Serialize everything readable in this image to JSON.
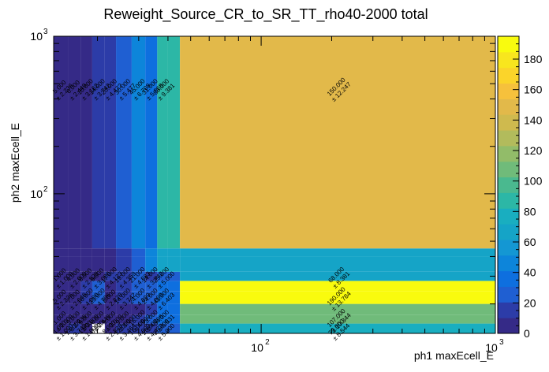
{
  "chart_data": {
    "type": "heatmap",
    "title": "Reweight_Source_CR_to_SR_TT_rho40-2000 total",
    "xlabel": "ph1 maxEcell_E",
    "ylabel": "ph2 maxEcell_E",
    "xscale": "log",
    "yscale": "log",
    "xlim": [
      13,
      1000
    ],
    "ylim": [
      13,
      1000
    ],
    "x_ticks": [
      {
        "base": "10",
        "exp": "2",
        "value": 100
      },
      {
        "base": "10",
        "exp": "3",
        "value": 1000
      }
    ],
    "y_ticks": [
      {
        "base": "10",
        "exp": "2",
        "value": 100
      },
      {
        "base": "10",
        "exp": "3",
        "value": 1000
      }
    ],
    "x_edges": [
      13,
      15,
      17,
      19,
      21.5,
      24,
      28,
      32,
      36,
      40,
      45,
      1000
    ],
    "y_edges": [
      13,
      15,
      17,
      20,
      24,
      28,
      32,
      40,
      45,
      1000
    ],
    "colorbar": {
      "min": 0,
      "max": 195,
      "ticks": [
        "0",
        "20",
        "40",
        "60",
        "80",
        "100",
        "120",
        "140",
        "160",
        "180"
      ],
      "palette": [
        "#352a87",
        "#2c3ca8",
        "#1f5fd2",
        "#0e6fdf",
        "#0d85da",
        "#1497d3",
        "#15a4c7",
        "#19aec0",
        "#2cb7a6",
        "#4ab98f",
        "#70bb7a",
        "#92bc69",
        "#b2bb5c",
        "#cfba4e",
        "#e2b94a",
        "#f6c13c",
        "#fbd42a",
        "#f8e61e",
        "#f9fb0e"
      ]
    },
    "cells": [
      {
        "i": 0,
        "j": 0,
        "v": 1.0,
        "err": "1.000",
        "label": "1.000\n± 1.000"
      },
      {
        "i": 1,
        "j": 0,
        "v": 14.0,
        "err": "3.742",
        "label": "14.000\n± 3.742"
      },
      {
        "i": 2,
        "j": 0,
        "v": 1.0,
        "err": "1.000",
        "label": "1.000\n± 1.000"
      },
      {
        "i": 3,
        "j": 0,
        "v": 0.0,
        "err": "0.000",
        "label": "0.000"
      },
      {
        "i": 4,
        "j": 0,
        "v": 8.0,
        "err": "2.828",
        "label": "8.000\n± 2.828"
      },
      {
        "i": 5,
        "j": 0,
        "v": 12.0,
        "err": "3.464",
        "label": "12.000\n± 3.464"
      },
      {
        "i": 6,
        "j": 0,
        "v": 16.0,
        "err": "4.000",
        "label": "16.000\n± 4.000"
      },
      {
        "i": 7,
        "j": 0,
        "v": 20.0,
        "err": "4.472",
        "label": "20.000\n± 4.472"
      },
      {
        "i": 8,
        "j": 0,
        "v": 25.0,
        "err": "5.000",
        "label": "25.000\n± 5.000"
      },
      {
        "i": 9,
        "j": 0,
        "v": 25.0,
        "err": "5.000",
        "label": "25.000\n± 5.000"
      },
      {
        "i": 10,
        "j": 0,
        "v": 73.0,
        "err": "8.544",
        "label": "73.000\n± 8.544"
      },
      {
        "i": 0,
        "j": 1,
        "v": 1.0,
        "err": "1.000",
        "label": "1.000\n± 1.000"
      },
      {
        "i": 1,
        "j": 1,
        "v": 5.0,
        "err": "2.236",
        "label": "5.000\n± 2.236"
      },
      {
        "i": 2,
        "j": 1,
        "v": 9.0,
        "err": "3.000",
        "label": "9.000\n± 3.000"
      },
      {
        "i": 3,
        "j": 1,
        "v": 6.0,
        "err": "2.449",
        "label": "6.000\n± 2.449"
      },
      {
        "i": 4,
        "j": 1,
        "v": 9.0,
        "err": "3.000",
        "label": "9.000\n± 3.000"
      },
      {
        "i": 5,
        "j": 1,
        "v": 9.0,
        "err": "3.000",
        "label": "9.000\n± 3.000"
      },
      {
        "i": 6,
        "j": 1,
        "v": 16.0,
        "err": "4.000",
        "label": "16.000\n± 4.000"
      },
      {
        "i": 7,
        "j": 1,
        "v": 23.0,
        "err": "4.796",
        "label": "23.000\n± 4.796"
      },
      {
        "i": 8,
        "j": 1,
        "v": 34.0,
        "err": "5.831",
        "label": "34.000\n± 5.831"
      },
      {
        "i": 9,
        "j": 1,
        "v": 34.0,
        "err": "5.831",
        "label": "34.000\n± 5.831"
      },
      {
        "i": 10,
        "j": 1,
        "v": 107.0,
        "err": "10.344",
        "label": "107.000\n± 10.344"
      },
      {
        "i": 0,
        "j": 2,
        "v": 1.0,
        "err": "1.000",
        "label": "1.000\n± 1.000"
      },
      {
        "i": 1,
        "j": 2,
        "v": 5.0,
        "err": "2.236",
        "label": "5.000\n± 2.236"
      },
      {
        "i": 2,
        "j": 2,
        "v": 10.0,
        "err": "3.162",
        "label": "10.000\n± 3.162"
      },
      {
        "i": 3,
        "j": 2,
        "v": 9.0,
        "err": "3.000",
        "label": "9.000\n± 3.000"
      },
      {
        "i": 4,
        "j": 2,
        "v": 9.0,
        "err": "3.000",
        "label": "9.000\n± 3.000"
      },
      {
        "i": 5,
        "j": 2,
        "v": 9.0,
        "err": "3.000",
        "label": "9.000\n± 3.000"
      },
      {
        "i": 6,
        "j": 2,
        "v": 9.0,
        "err": "3.000",
        "label": "9.000\n± 3.000"
      },
      {
        "i": 7,
        "j": 2,
        "v": 16.0,
        "err": "4.000",
        "label": "16.000\n± 4.000"
      },
      {
        "i": 8,
        "j": 2,
        "v": 34.0,
        "err": "5.831",
        "label": "34.000\n± 5.831"
      },
      {
        "i": 9,
        "j": 2,
        "v": 34.0,
        "err": "5.831",
        "label": "34.000\n± 5.831"
      },
      {
        "i": 10,
        "j": 2,
        "v": 107.0,
        "err": "10.344",
        "label": "107.000\n± 10.344"
      },
      {
        "i": 0,
        "j": 3,
        "v": 5.0,
        "err": "2.236",
        "label": "5.000\n± 2.236"
      },
      {
        "i": 1,
        "j": 3,
        "v": 7.0,
        "err": "2.646",
        "label": "7.000\n± 2.646"
      },
      {
        "i": 2,
        "j": 3,
        "v": 16.0,
        "err": "4.000",
        "label": "16.000\n± 4.000"
      },
      {
        "i": 3,
        "j": 3,
        "v": 23.0,
        "err": "4.796",
        "label": "23.000\n± 4.796"
      },
      {
        "i": 4,
        "j": 3,
        "v": 8.0,
        "err": "2.828",
        "label": "8.000\n± 2.828"
      },
      {
        "i": 5,
        "j": 3,
        "v": 14.0,
        "err": "3.742",
        "label": "14.000\n± 3.742"
      },
      {
        "i": 6,
        "j": 3,
        "v": 24.0,
        "err": "4.899",
        "label": "24.000\n± 4.899"
      },
      {
        "i": 7,
        "j": 3,
        "v": 24.0,
        "err": "4.899",
        "label": "24.000\n± 4.899"
      },
      {
        "i": 8,
        "j": 3,
        "v": 41.0,
        "err": "6.403",
        "label": "41.000\n± 6.403"
      },
      {
        "i": 9,
        "j": 3,
        "v": 41.0,
        "err": "6.403",
        "label": "41.000\n± 6.403"
      },
      {
        "i": 10,
        "j": 3,
        "v": 190.0,
        "err": "13.784",
        "label": "190.000\n± 13.784"
      },
      {
        "i": 0,
        "j": 4,
        "v": 5.0,
        "err": "2.236",
        "label": "5.000\n± 2.236"
      },
      {
        "i": 1,
        "j": 4,
        "v": 7.0,
        "err": "2.646",
        "label": "7.000\n± 2.646"
      },
      {
        "i": 2,
        "j": 4,
        "v": 16.0,
        "err": "4.000",
        "label": "16.000\n± 4.000"
      },
      {
        "i": 3,
        "j": 4,
        "v": 23.0,
        "err": "4.796",
        "label": "23.000\n± 4.796"
      },
      {
        "i": 4,
        "j": 4,
        "v": 8.0,
        "err": "2.828",
        "label": "8.000\n± 2.828"
      },
      {
        "i": 5,
        "j": 4,
        "v": 14.0,
        "err": "3.742",
        "label": "14.000\n± 3.742"
      },
      {
        "i": 6,
        "j": 4,
        "v": 24.0,
        "err": "4.899",
        "label": "24.000\n± 4.899"
      },
      {
        "i": 7,
        "j": 4,
        "v": 24.0,
        "err": "4.899",
        "label": "24.000\n± 4.899"
      },
      {
        "i": 8,
        "j": 4,
        "v": 41.0,
        "err": "6.403",
        "label": "41.000\n± 6.403"
      },
      {
        "i": 9,
        "j": 4,
        "v": 41.0,
        "err": "6.403",
        "label": "41.000\n± 6.403"
      },
      {
        "i": 10,
        "j": 4,
        "v": 190.0,
        "err": "13.784",
        "label": "190.000\n± 13.784"
      },
      {
        "i": 0,
        "j": 5,
        "v": 1.0,
        "err": "1.000",
        "label": "1.000\n± 1.000"
      },
      {
        "i": 1,
        "j": 5,
        "v": 4.0,
        "err": "2.000",
        "label": "4.000\n± 2.000"
      },
      {
        "i": 2,
        "j": 5,
        "v": 8.0,
        "err": "2.828",
        "label": "8.000\n± 2.828"
      },
      {
        "i": 3,
        "j": 5,
        "v": 9.0,
        "err": "3.000",
        "label": "9.000\n± 3.000"
      },
      {
        "i": 4,
        "j": 5,
        "v": 17.0,
        "err": "4.123",
        "label": "17.000\n± 4.123"
      },
      {
        "i": 5,
        "j": 5,
        "v": 19.0,
        "err": "4.359",
        "label": "19.000\n± 4.359"
      },
      {
        "i": 6,
        "j": 5,
        "v": 21.0,
        "err": "4.583",
        "label": "21.000\n± 4.583"
      },
      {
        "i": 7,
        "j": 5,
        "v": 14.0,
        "err": "3.742",
        "label": "14.000\n± 3.742"
      },
      {
        "i": 8,
        "j": 5,
        "v": 25.0,
        "err": "5.000",
        "label": "25.000\n± 5.000"
      },
      {
        "i": 9,
        "j": 5,
        "v": 25.0,
        "err": "5.000",
        "label": "25.000\n± 5.000"
      },
      {
        "i": 10,
        "j": 5,
        "v": 68.0,
        "err": "8.381",
        "label": "68.000\n± 8.381"
      },
      {
        "i": 0,
        "j": 6,
        "v": 2.0,
        "err": "1.414",
        "label": "2.000\n± 1.414"
      },
      {
        "i": 1,
        "j": 6,
        "v": 3.0,
        "err": "1.732",
        "label": "3.000\n± 1.732"
      },
      {
        "i": 2,
        "j": 6,
        "v": 5.0,
        "err": "2.236",
        "label": "5.000\n± 2.236"
      },
      {
        "i": 3,
        "j": 6,
        "v": 8.0,
        "err": "2.828",
        "label": "8.000\n± 2.828"
      },
      {
        "i": 4,
        "j": 6,
        "v": 10.0,
        "err": "3.162",
        "label": "10.000\n± 3.162"
      },
      {
        "i": 5,
        "j": 6,
        "v": 20.0,
        "err": "4.472",
        "label": "20.000\n± 4.472"
      },
      {
        "i": 6,
        "j": 6,
        "v": 30.0,
        "err": "5.477",
        "label": "30.000\n± 5.477"
      },
      {
        "i": 7,
        "j": 6,
        "v": 45.0,
        "err": "6.708",
        "label": "45.000\n± 6.708"
      },
      {
        "i": 8,
        "j": 6,
        "v": 68.0,
        "err": "8.381",
        "label": "68.000\n± 8.381"
      },
      {
        "i": 9,
        "j": 6,
        "v": 68.0,
        "err": "8.381",
        "label": "68.000\n± 8.381"
      },
      {
        "i": 10,
        "j": 6,
        "v": 68.0,
        "err": "8.381",
        "label": "68.000\n± 8.381"
      },
      {
        "i": 0,
        "j": 7,
        "v": 2.0,
        "err": "1.414",
        "label": "2.000\n± 1.414"
      },
      {
        "i": 1,
        "j": 7,
        "v": 3.0,
        "err": "1.732",
        "label": "3.000\n± 1.732"
      },
      {
        "i": 2,
        "j": 7,
        "v": 5.0,
        "err": "2.236",
        "label": "5.000\n± 2.236"
      },
      {
        "i": 3,
        "j": 7,
        "v": 8.0,
        "err": "2.828",
        "label": "8.000\n± 2.828"
      },
      {
        "i": 4,
        "j": 7,
        "v": 10.0,
        "err": "3.162",
        "label": "10.000\n± 3.162"
      },
      {
        "i": 5,
        "j": 7,
        "v": 20.0,
        "err": "4.472",
        "label": "20.000\n± 4.472"
      },
      {
        "i": 6,
        "j": 7,
        "v": 30.0,
        "err": "5.477",
        "label": "30.000\n± 5.477"
      },
      {
        "i": 7,
        "j": 7,
        "v": 45.0,
        "err": "6.708",
        "label": "45.000\n± 6.708"
      },
      {
        "i": 8,
        "j": 7,
        "v": 68.0,
        "err": "8.381",
        "label": "68.000\n± 8.381"
      },
      {
        "i": 9,
        "j": 7,
        "v": 68.0,
        "err": "8.381",
        "label": "68.000\n± 8.381"
      },
      {
        "i": 10,
        "j": 7,
        "v": 68.0,
        "err": "8.381",
        "label": "68.000\n± 8.381"
      },
      {
        "i": 0,
        "j": 8,
        "v": 5.0,
        "err": "2.236",
        "label": "5.000\n± 2.236"
      },
      {
        "i": 1,
        "j": 8,
        "v": 6.0,
        "err": "2.449",
        "label": "6.000\n± 2.449"
      },
      {
        "i": 2,
        "j": 8,
        "v": 10.0,
        "err": "3.162",
        "label": "10.000\n± 3.162"
      },
      {
        "i": 3,
        "j": 8,
        "v": 14.0,
        "err": "3.742",
        "label": "14.000\n± 3.742"
      },
      {
        "i": 4,
        "j": 8,
        "v": 20.0,
        "err": "4.472",
        "label": "20.000\n± 4.472"
      },
      {
        "i": 5,
        "j": 8,
        "v": 30.0,
        "err": "5.477",
        "label": "30.000\n± 5.477"
      },
      {
        "i": 6,
        "j": 8,
        "v": 45.0,
        "err": "6.708",
        "label": "45.000\n± 6.708"
      },
      {
        "i": 7,
        "j": 8,
        "v": 31.0,
        "err": "5.568",
        "label": "31.000\n± 5.568"
      },
      {
        "i": 8,
        "j": 8,
        "v": 88.0,
        "err": "9.381",
        "label": "88.000\n± 9.381"
      },
      {
        "i": 9,
        "j": 8,
        "v": 88.0,
        "err": "9.381",
        "label": "88.000\n± 9.381"
      },
      {
        "i": 10,
        "j": 8,
        "v": 150.0,
        "err": "12.247",
        "label": "150.000\n± 12.247"
      }
    ]
  }
}
